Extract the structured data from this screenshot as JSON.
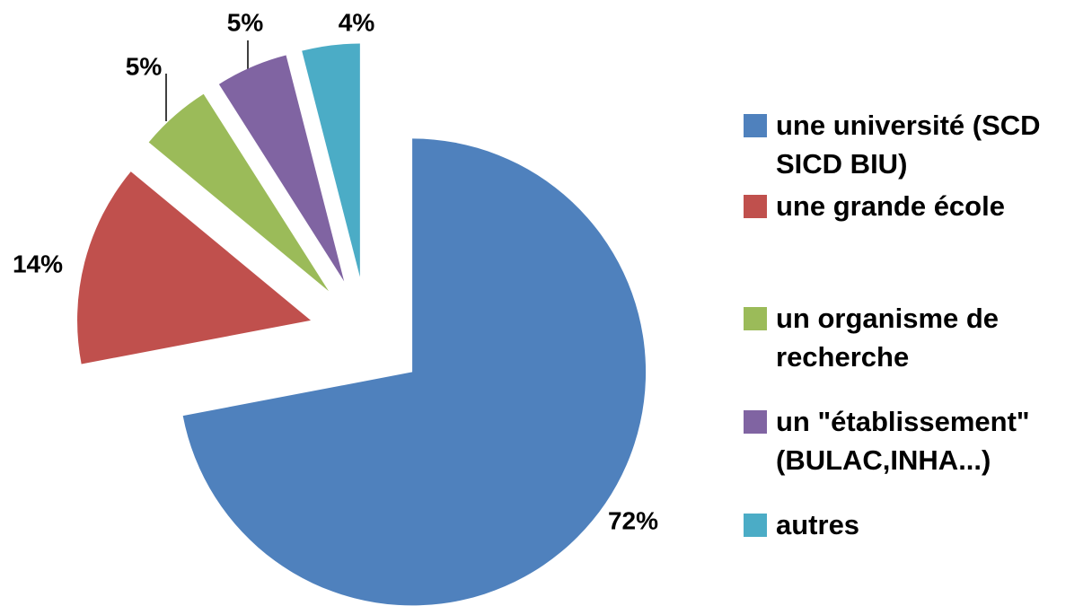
{
  "chart_data": {
    "type": "pie",
    "categories": [
      "une université (SCD SICD BIU)",
      "une grande école",
      "un organisme de recherche",
      "un \"établissement\" (BULAC,INHA...)",
      "autres"
    ],
    "values": [
      72,
      14,
      5,
      5,
      4
    ],
    "value_labels": [
      "72%",
      "14%",
      "5%",
      "5%",
      "4%"
    ],
    "colors": [
      "#4f81bd",
      "#c0504d",
      "#9bbb59",
      "#8064a2",
      "#4bacc6"
    ],
    "legend": "right"
  }
}
